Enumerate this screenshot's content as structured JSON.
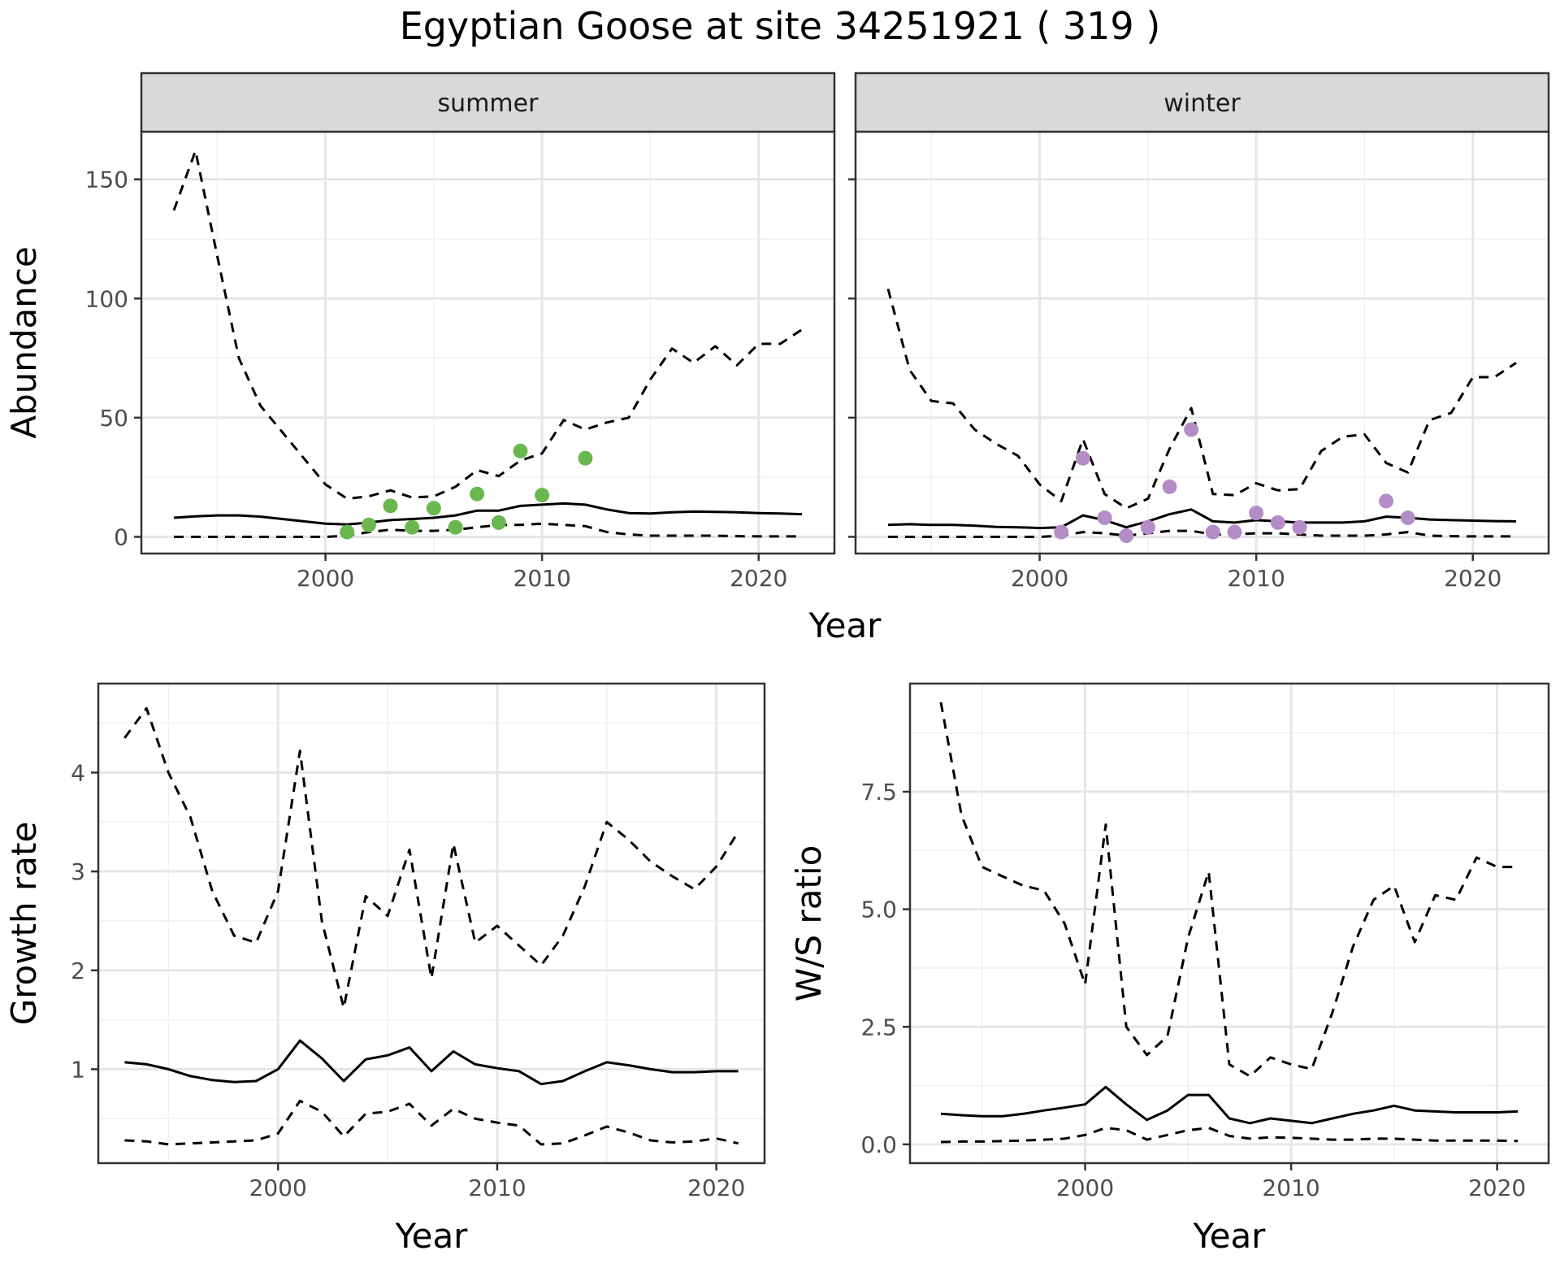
{
  "title": "Egyptian Goose at site 34251921 ( 319 )",
  "colors": {
    "summer_points": "#6ab74f",
    "winter_points": "#b48cc6",
    "lines": "#000000"
  },
  "chart_data": [
    {
      "id": "summer",
      "type": "line",
      "strip": "summer",
      "xlabel": "Year",
      "ylabel": "Abundance",
      "xlim": [
        1991.5,
        2023.5
      ],
      "ylim": [
        -7,
        170
      ],
      "xticks": [
        2000,
        2010,
        2020
      ],
      "yticks": [
        0,
        50,
        100,
        150
      ],
      "grid": true,
      "series": [
        {
          "role": "median",
          "style": "solid",
          "x": [
            1993,
            1994,
            1995,
            1996,
            1997,
            1998,
            1999,
            2000,
            2001,
            2002,
            2003,
            2004,
            2005,
            2006,
            2007,
            2008,
            2009,
            2010,
            2011,
            2012,
            2013,
            2014,
            2015,
            2016,
            2017,
            2018,
            2019,
            2020,
            2021,
            2022
          ],
          "y": [
            8,
            8.6,
            9,
            9,
            8.5,
            7.5,
            6.5,
            5.5,
            5.2,
            6,
            7,
            7.5,
            8,
            9,
            11,
            11,
            13,
            13.5,
            14,
            13.5,
            11.5,
            10,
            9.8,
            10.3,
            10.6,
            10.5,
            10.3,
            10,
            9.8,
            9.5
          ]
        },
        {
          "role": "upper",
          "style": "dashed",
          "x": [
            1993,
            1994,
            1995,
            1996,
            1997,
            1998,
            1999,
            2000,
            2001,
            2002,
            2003,
            2004,
            2005,
            2006,
            2007,
            2008,
            2009,
            2010,
            2011,
            2012,
            2013,
            2014,
            2015,
            2016,
            2017,
            2018,
            2019,
            2020,
            2021,
            2022
          ],
          "y": [
            137,
            162,
            118,
            75,
            55,
            44,
            33,
            22,
            16,
            17,
            19.5,
            16.5,
            17,
            21,
            28,
            25.5,
            32,
            35,
            49,
            45,
            48,
            50,
            66,
            79,
            73,
            80,
            72,
            81,
            81,
            87
          ]
        },
        {
          "role": "lower",
          "style": "dashed",
          "x": [
            1993,
            1994,
            1995,
            1996,
            1997,
            1998,
            1999,
            2000,
            2001,
            2002,
            2003,
            2004,
            2005,
            2006,
            2007,
            2008,
            2009,
            2010,
            2011,
            2012,
            2013,
            2014,
            2015,
            2016,
            2017,
            2018,
            2019,
            2020,
            2021,
            2022
          ],
          "y": [
            0,
            0,
            0,
            0,
            0,
            0,
            0,
            0,
            0.5,
            2,
            3,
            2.5,
            2.5,
            3,
            4,
            5,
            5,
            5.5,
            5,
            4.5,
            2,
            1,
            0.5,
            0.5,
            0.5,
            0.5,
            0.3,
            0.2,
            0.2,
            0.2
          ]
        },
        {
          "role": "observed",
          "style": "points",
          "color": "#6ab74f",
          "x": [
            2001,
            2002,
            2003,
            2004,
            2005,
            2006,
            2007,
            2008,
            2009,
            2010,
            2012
          ],
          "y": [
            2,
            5,
            13,
            4,
            12,
            4,
            18,
            6,
            36,
            17.5,
            33
          ]
        }
      ]
    },
    {
      "id": "winter",
      "type": "line",
      "strip": "winter",
      "xlabel": "",
      "ylabel": "",
      "xlim": [
        1991.5,
        2023.5
      ],
      "ylim": [
        -7,
        170
      ],
      "xticks": [
        2000,
        2010,
        2020
      ],
      "yticks": [
        0,
        50,
        100,
        150
      ],
      "grid": true,
      "series": [
        {
          "role": "median",
          "style": "solid",
          "x": [
            1993,
            1994,
            1995,
            1996,
            1997,
            1998,
            1999,
            2000,
            2001,
            2002,
            2003,
            2004,
            2005,
            2006,
            2007,
            2008,
            2009,
            2010,
            2011,
            2012,
            2013,
            2014,
            2015,
            2016,
            2017,
            2018,
            2019,
            2020,
            2021,
            2022
          ],
          "y": [
            5,
            5.3,
            5,
            5,
            4.7,
            4.2,
            4,
            3.7,
            4,
            9,
            7,
            4,
            6.5,
            9.5,
            11.5,
            6.5,
            6,
            7,
            6.5,
            6,
            6,
            6,
            6.5,
            8.5,
            8,
            7.3,
            7,
            6.8,
            6.6,
            6.5
          ]
        },
        {
          "role": "upper",
          "style": "dashed",
          "x": [
            1993,
            1994,
            1995,
            1996,
            1997,
            1998,
            1999,
            2000,
            2001,
            2002,
            2003,
            2004,
            2005,
            2006,
            2007,
            2008,
            2009,
            2010,
            2011,
            2012,
            2013,
            2014,
            2015,
            2016,
            2017,
            2018,
            2019,
            2020,
            2021,
            2022
          ],
          "y": [
            104,
            70,
            57,
            56,
            45,
            39,
            34,
            22,
            15,
            41,
            18,
            12,
            16,
            37,
            54,
            18,
            17.5,
            22.5,
            19.5,
            20,
            36,
            42,
            43,
            31,
            27,
            49,
            52,
            67,
            67,
            73
          ]
        },
        {
          "role": "lower",
          "style": "dashed",
          "x": [
            1993,
            1994,
            1995,
            1996,
            1997,
            1998,
            1999,
            2000,
            2001,
            2002,
            2003,
            2004,
            2005,
            2006,
            2007,
            2008,
            2009,
            2010,
            2011,
            2012,
            2013,
            2014,
            2015,
            2016,
            2017,
            2018,
            2019,
            2020,
            2021,
            2022
          ],
          "y": [
            0,
            0,
            0,
            0,
            0,
            0,
            0,
            0,
            0.5,
            2,
            1.5,
            0.5,
            1.5,
            2.5,
            2.5,
            1,
            1,
            1.5,
            1.5,
            1,
            0.5,
            0.5,
            0.5,
            1,
            2,
            0.5,
            0.3,
            0.2,
            0.2,
            0.2
          ]
        },
        {
          "role": "observed",
          "style": "points",
          "color": "#b48cc6",
          "x": [
            2001,
            2002,
            2003,
            2004,
            2005,
            2006,
            2007,
            2008,
            2009,
            2010,
            2011,
            2012,
            2016,
            2017
          ],
          "y": [
            2,
            33,
            8,
            0.5,
            4,
            21,
            45,
            2,
            2,
            10,
            6,
            4,
            15,
            8
          ]
        }
      ]
    },
    {
      "id": "growth",
      "type": "line",
      "strip": "",
      "xlabel": "Year",
      "ylabel": "Growth rate",
      "xlim": [
        1991.8,
        2022.2
      ],
      "ylim": [
        0.05,
        4.9
      ],
      "xticks": [
        2000,
        2010,
        2020
      ],
      "yticks": [
        1,
        2,
        3,
        4
      ],
      "grid": true,
      "series": [
        {
          "role": "median",
          "style": "solid",
          "x": [
            1993,
            1994,
            1995,
            1996,
            1997,
            1998,
            1999,
            2000,
            2001,
            2002,
            2003,
            2004,
            2005,
            2006,
            2007,
            2008,
            2009,
            2010,
            2011,
            2012,
            2013,
            2014,
            2015,
            2016,
            2017,
            2018,
            2019,
            2020,
            2021
          ],
          "y": [
            1.07,
            1.05,
            1.0,
            0.93,
            0.89,
            0.87,
            0.88,
            1.0,
            1.29,
            1.11,
            0.88,
            1.1,
            1.14,
            1.22,
            0.98,
            1.18,
            1.05,
            1.01,
            0.98,
            0.85,
            0.88,
            0.98,
            1.07,
            1.04,
            1.0,
            0.97,
            0.97,
            0.98,
            0.98
          ]
        },
        {
          "role": "upper",
          "style": "dashed",
          "x": [
            1993,
            1994,
            1995,
            1996,
            1997,
            1998,
            1999,
            2000,
            2001,
            2002,
            2003,
            2004,
            2005,
            2006,
            2007,
            2008,
            2009,
            2010,
            2011,
            2012,
            2013,
            2014,
            2015,
            2016,
            2017,
            2018,
            2019,
            2020,
            2021
          ],
          "y": [
            4.35,
            4.65,
            4.0,
            3.55,
            2.8,
            2.35,
            2.28,
            2.8,
            4.22,
            2.5,
            1.62,
            2.75,
            2.55,
            3.22,
            1.92,
            3.28,
            2.28,
            2.45,
            2.25,
            2.05,
            2.35,
            2.85,
            3.5,
            3.32,
            3.1,
            2.95,
            2.82,
            3.05,
            3.4
          ]
        },
        {
          "role": "lower",
          "style": "dashed",
          "x": [
            1993,
            1994,
            1995,
            1996,
            1997,
            1998,
            1999,
            2000,
            2001,
            2002,
            2003,
            2004,
            2005,
            2006,
            2007,
            2008,
            2009,
            2010,
            2011,
            2012,
            2013,
            2014,
            2015,
            2016,
            2017,
            2018,
            2019,
            2020,
            2021
          ],
          "y": [
            0.28,
            0.27,
            0.24,
            0.25,
            0.26,
            0.27,
            0.28,
            0.35,
            0.68,
            0.57,
            0.32,
            0.55,
            0.57,
            0.65,
            0.43,
            0.6,
            0.5,
            0.46,
            0.43,
            0.24,
            0.25,
            0.33,
            0.42,
            0.36,
            0.28,
            0.26,
            0.27,
            0.3,
            0.25
          ]
        }
      ]
    },
    {
      "id": "ws_ratio",
      "type": "line",
      "strip": "",
      "xlabel": "Year",
      "ylabel": "W/S ratio",
      "xlim": [
        1991.5,
        2022.5
      ],
      "ylim": [
        -0.4,
        9.8
      ],
      "xticks": [
        2000,
        2010,
        2020
      ],
      "yticks": [
        0.0,
        2.5,
        5.0,
        7.5
      ],
      "ytick_labels": [
        "0.0",
        "2.5",
        "5.0",
        "7.5"
      ],
      "grid": true,
      "series": [
        {
          "role": "median",
          "style": "solid",
          "x": [
            1993,
            1994,
            1995,
            1996,
            1997,
            1998,
            1999,
            2000,
            2001,
            2002,
            2003,
            2004,
            2005,
            2006,
            2007,
            2008,
            2009,
            2010,
            2011,
            2012,
            2013,
            2014,
            2015,
            2016,
            2017,
            2018,
            2019,
            2020,
            2021
          ],
          "y": [
            0.65,
            0.62,
            0.6,
            0.6,
            0.65,
            0.72,
            0.78,
            0.85,
            1.22,
            0.85,
            0.52,
            0.72,
            1.05,
            1.05,
            0.55,
            0.45,
            0.55,
            0.5,
            0.45,
            0.55,
            0.65,
            0.72,
            0.82,
            0.72,
            0.7,
            0.68,
            0.68,
            0.68,
            0.7
          ]
        },
        {
          "role": "upper",
          "style": "dashed",
          "x": [
            1993,
            1994,
            1995,
            1996,
            1997,
            1998,
            1999,
            2000,
            2001,
            2002,
            2003,
            2004,
            2005,
            2006,
            2007,
            2008,
            2009,
            2010,
            2011,
            2012,
            2013,
            2014,
            2015,
            2016,
            2017,
            2018,
            2019,
            2020,
            2021
          ],
          "y": [
            9.4,
            7.0,
            5.9,
            5.7,
            5.5,
            5.4,
            4.7,
            3.4,
            6.8,
            2.5,
            1.9,
            2.3,
            4.4,
            5.8,
            1.7,
            1.45,
            1.85,
            1.7,
            1.6,
            2.8,
            4.2,
            5.2,
            5.5,
            4.3,
            5.3,
            5.2,
            6.1,
            5.9,
            5.9
          ]
        },
        {
          "role": "lower",
          "style": "dashed",
          "x": [
            1993,
            1994,
            1995,
            1996,
            1997,
            1998,
            1999,
            2000,
            2001,
            2002,
            2003,
            2004,
            2005,
            2006,
            2007,
            2008,
            2009,
            2010,
            2011,
            2012,
            2013,
            2014,
            2015,
            2016,
            2017,
            2018,
            2019,
            2020,
            2021
          ],
          "y": [
            0.05,
            0.06,
            0.06,
            0.07,
            0.08,
            0.1,
            0.12,
            0.2,
            0.35,
            0.3,
            0.1,
            0.2,
            0.3,
            0.35,
            0.18,
            0.12,
            0.15,
            0.14,
            0.12,
            0.1,
            0.1,
            0.12,
            0.12,
            0.1,
            0.08,
            0.08,
            0.08,
            0.08,
            0.07
          ]
        }
      ]
    }
  ]
}
